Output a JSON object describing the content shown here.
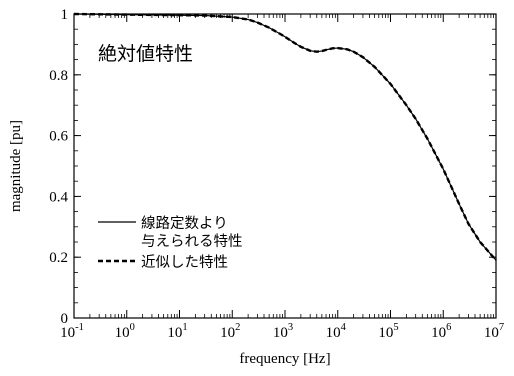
{
  "chart_data": {
    "type": "line",
    "title": "絶対値特性",
    "xlabel": "frequency [Hz]",
    "ylabel": "magnitude [pu]",
    "x_scale": "log",
    "xlim": [
      0.1,
      10000000
    ],
    "ylim": [
      0,
      1
    ],
    "x_ticks": [
      {
        "base": "10",
        "exp": "-1",
        "value": 0.1
      },
      {
        "base": "10",
        "exp": "0",
        "value": 1
      },
      {
        "base": "10",
        "exp": "1",
        "value": 10
      },
      {
        "base": "10",
        "exp": "2",
        "value": 100
      },
      {
        "base": "10",
        "exp": "3",
        "value": 1000
      },
      {
        "base": "10",
        "exp": "4",
        "value": 10000
      },
      {
        "base": "10",
        "exp": "5",
        "value": 100000
      },
      {
        "base": "10",
        "exp": "6",
        "value": 1000000
      },
      {
        "base": "10",
        "exp": "7",
        "value": 10000000
      }
    ],
    "y_ticks": [
      {
        "label": "0",
        "value": 0
      },
      {
        "label": "0.2",
        "value": 0.2
      },
      {
        "label": "0.4",
        "value": 0.4
      },
      {
        "label": "0.6",
        "value": 0.6
      },
      {
        "label": "0.8",
        "value": 0.8
      },
      {
        "label": "1",
        "value": 1
      }
    ],
    "legend": {
      "placement": "bottom-left",
      "entries": [
        {
          "lines": [
            "線路定数より",
            "与えられる特性"
          ],
          "style": "solid"
        },
        {
          "lines": [
            "近似した特性"
          ],
          "style": "dashed"
        }
      ]
    },
    "series": [
      {
        "style": "solid",
        "color": "#000000",
        "x": [
          0.1,
          1,
          10,
          30,
          100,
          200,
          300,
          500,
          800,
          1000,
          1500,
          2000,
          3000,
          4000,
          5000,
          6000,
          8000,
          10000,
          15000,
          20000,
          30000,
          50000,
          100000,
          200000,
          300000,
          500000,
          1000000,
          2000000,
          3000000,
          5000000,
          10000000
        ],
        "y": [
          1.0,
          0.998,
          0.996,
          0.995,
          0.99,
          0.982,
          0.972,
          0.955,
          0.935,
          0.925,
          0.905,
          0.892,
          0.879,
          0.876,
          0.878,
          0.882,
          0.887,
          0.888,
          0.884,
          0.876,
          0.858,
          0.826,
          0.77,
          0.7,
          0.655,
          0.59,
          0.49,
          0.375,
          0.31,
          0.25,
          0.19
        ]
      },
      {
        "style": "dashed",
        "color": "#000000",
        "x": [
          0.1,
          1,
          10,
          30,
          100,
          200,
          300,
          500,
          800,
          1000,
          1500,
          2000,
          3000,
          4000,
          5000,
          6000,
          8000,
          10000,
          15000,
          20000,
          30000,
          50000,
          100000,
          200000,
          300000,
          500000,
          1000000,
          2000000,
          3000000,
          5000000,
          10000000
        ],
        "y": [
          1.0,
          0.998,
          0.996,
          0.995,
          0.99,
          0.982,
          0.972,
          0.955,
          0.935,
          0.925,
          0.905,
          0.892,
          0.879,
          0.876,
          0.878,
          0.882,
          0.887,
          0.888,
          0.884,
          0.876,
          0.858,
          0.826,
          0.77,
          0.7,
          0.655,
          0.59,
          0.49,
          0.375,
          0.31,
          0.25,
          0.19
        ]
      }
    ]
  }
}
